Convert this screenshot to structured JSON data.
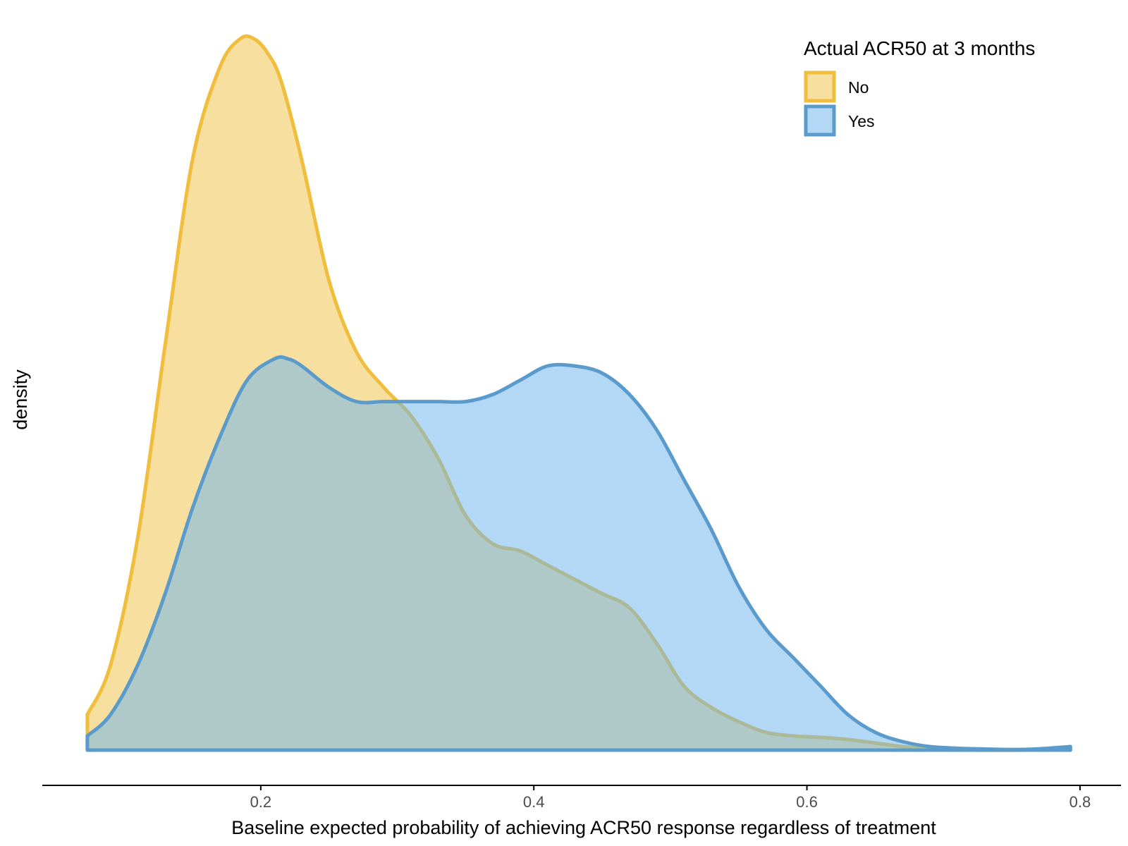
{
  "chart_data": {
    "type": "area",
    "subtype": "density",
    "title": "",
    "xlabel": "Baseline expected probability of achieving ACR50 response regardless of treatment",
    "ylabel": "density",
    "xlim": [
      0.04,
      0.83
    ],
    "ylim": [
      0,
      1
    ],
    "x_ticks": [
      0.2,
      0.4,
      0.6,
      0.8
    ],
    "x_tick_labels": [
      "0.2",
      "0.4",
      "0.6",
      "0.8"
    ],
    "y_ticks_shown": false,
    "grid": false,
    "legend": {
      "title": "Actual ACR50 at 3 months",
      "position": "top-right",
      "entries": [
        "No",
        "Yes"
      ]
    },
    "series": [
      {
        "name": "No",
        "line_color": "#F0BE3C",
        "fill_color": "#F0C040",
        "fill_opacity": 0.5,
        "x": [
          0.073,
          0.09,
          0.11,
          0.13,
          0.15,
          0.17,
          0.185,
          0.195,
          0.205,
          0.215,
          0.23,
          0.25,
          0.27,
          0.29,
          0.31,
          0.33,
          0.35,
          0.37,
          0.39,
          0.41,
          0.43,
          0.45,
          0.47,
          0.49,
          0.51,
          0.53,
          0.55,
          0.57,
          0.59,
          0.61,
          0.63,
          0.65,
          0.67,
          0.69,
          0.72,
          0.76,
          0.793
        ],
        "y": [
          0.05,
          0.12,
          0.3,
          0.57,
          0.83,
          0.96,
          1.0,
          1.0,
          0.98,
          0.94,
          0.83,
          0.66,
          0.56,
          0.51,
          0.47,
          0.41,
          0.33,
          0.29,
          0.28,
          0.26,
          0.24,
          0.22,
          0.2,
          0.15,
          0.09,
          0.06,
          0.04,
          0.025,
          0.02,
          0.018,
          0.015,
          0.01,
          0.005,
          0.002,
          0.0,
          0.0,
          0.0
        ]
      },
      {
        "name": "Yes",
        "line_color": "#5B9BCB",
        "fill_color": "#6BB4EE",
        "fill_opacity": 0.52,
        "x": [
          0.073,
          0.09,
          0.11,
          0.13,
          0.15,
          0.17,
          0.19,
          0.21,
          0.22,
          0.23,
          0.25,
          0.27,
          0.29,
          0.31,
          0.33,
          0.35,
          0.37,
          0.39,
          0.41,
          0.43,
          0.45,
          0.47,
          0.49,
          0.51,
          0.53,
          0.55,
          0.57,
          0.59,
          0.61,
          0.63,
          0.65,
          0.67,
          0.69,
          0.72,
          0.76,
          0.793
        ],
        "y": [
          0.02,
          0.05,
          0.12,
          0.22,
          0.34,
          0.44,
          0.52,
          0.55,
          0.55,
          0.54,
          0.51,
          0.49,
          0.49,
          0.49,
          0.49,
          0.49,
          0.5,
          0.52,
          0.54,
          0.54,
          0.53,
          0.5,
          0.45,
          0.38,
          0.31,
          0.23,
          0.17,
          0.13,
          0.09,
          0.05,
          0.025,
          0.012,
          0.005,
          0.002,
          0.001,
          0.005
        ]
      }
    ]
  }
}
